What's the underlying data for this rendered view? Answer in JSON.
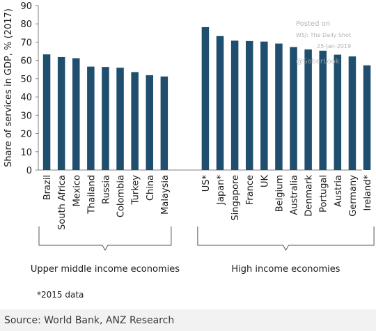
{
  "chart_data": {
    "type": "bar",
    "ylabel": "Share of services in GDP, % (2017)",
    "ylim": [
      0,
      90
    ],
    "yticks": [
      0,
      10,
      20,
      30,
      40,
      50,
      60,
      70,
      80,
      90
    ],
    "grid": false,
    "bar_color": "#1f4e6e",
    "groups": [
      {
        "name": "Upper middle income economies",
        "categories": [
          "Brazil",
          "South Africa",
          "Mexico",
          "Thailand",
          "Russia",
          "Colombia",
          "Turkey",
          "China",
          "Malaysia"
        ],
        "values": [
          63.3,
          61.8,
          61.2,
          56.6,
          56.4,
          56.0,
          53.6,
          51.9,
          51.2
        ]
      },
      {
        "name": "High income economies",
        "categories": [
          "US*",
          "Japan*",
          "Singapore",
          "France",
          "UK",
          "Belgium",
          "Australia",
          "Denmark",
          "Portugal",
          "Austria",
          "Germany",
          "Ireland*"
        ],
        "values": [
          78.2,
          73.3,
          70.8,
          70.6,
          70.3,
          69.2,
          67.3,
          66.0,
          65.3,
          63.1,
          62.2,
          57.3
        ]
      }
    ],
    "footnote": "*2015 data"
  },
  "watermark": {
    "line1": "Posted on",
    "line2": "WSJ: The Daily Shot",
    "line3": "25-Jan-2019",
    "line4": "@SoberLook"
  },
  "source": "Source: World Bank, ANZ Research"
}
